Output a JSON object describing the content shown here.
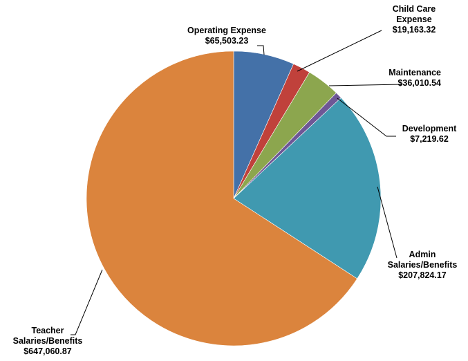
{
  "chart_data": {
    "type": "pie",
    "title": "",
    "start_angle_deg": 0,
    "direction": "clockwise",
    "legend": "none",
    "slices": [
      {
        "name": "Operating Expense",
        "label_lines": [
          "Operating Expense"
        ],
        "value": 65503.23,
        "value_label": "$65,503.23",
        "color": "#4471a8"
      },
      {
        "name": "Child Care Expense",
        "label_lines": [
          "Child Care",
          "Expense"
        ],
        "value": 19163.32,
        "value_label": "$19,163.32",
        "color": "#c0413b"
      },
      {
        "name": "Maintenance",
        "label_lines": [
          "Maintenance"
        ],
        "value": 36010.54,
        "value_label": "$36,010.54",
        "color": "#8ca64e"
      },
      {
        "name": "Development",
        "label_lines": [
          "Development"
        ],
        "value": 7219.62,
        "value_label": "$7,219.62",
        "color": "#6e5796"
      },
      {
        "name": "Admin Salaries/Benefits",
        "label_lines": [
          "Admin",
          "Salaries/Benefits"
        ],
        "value": 207824.17,
        "value_label": "$207,824.17",
        "color": "#4099b0"
      },
      {
        "name": "Teacher Salaries/Benefits",
        "label_lines": [
          "Teacher",
          "Salaries/Benefits"
        ],
        "value": 647060.87,
        "value_label": "$647,060.87",
        "color": "#db843d"
      }
    ]
  }
}
